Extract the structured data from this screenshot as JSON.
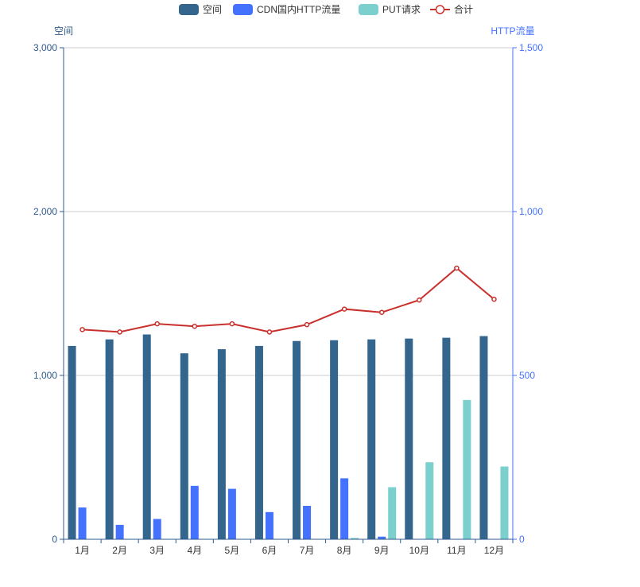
{
  "chart_data": {
    "type": "bar",
    "categories": [
      "1月",
      "2月",
      "3月",
      "4月",
      "5月",
      "6月",
      "7月",
      "8月",
      "9月",
      "10月",
      "11月",
      "12月"
    ],
    "legend": {
      "placement": "top-center",
      "items": [
        "空间",
        "CDN国内HTTP流量",
        "PUT请求",
        "合计"
      ]
    },
    "y_left": {
      "label": "空间",
      "ylim": [
        0,
        3000
      ],
      "ticks": [
        "0",
        "1,000",
        "2,000",
        "3,000"
      ],
      "tick_values": [
        0,
        1000,
        2000,
        3000
      ],
      "color": "#2f5a8c"
    },
    "y_right": {
      "label": "HTTP流量",
      "ylim": [
        0,
        1500
      ],
      "ticks": [
        "0",
        "500",
        "1,000",
        "1,500"
      ],
      "tick_values": [
        0,
        500,
        1000,
        1500
      ],
      "color": "#4472ff"
    },
    "grid": true,
    "series": [
      {
        "name": "空间",
        "type": "bar",
        "axis": "left",
        "color": "#34658c",
        "values": [
          1180,
          1220,
          1250,
          1135,
          1160,
          1180,
          1210,
          1215,
          1220,
          1225,
          1230,
          1240
        ]
      },
      {
        "name": "CDN国内HTTP流量",
        "type": "bar",
        "axis": "right",
        "color": "#4472ff",
        "values": [
          97,
          44,
          62,
          163,
          154,
          83,
          102,
          186,
          8,
          0,
          0,
          0
        ]
      },
      {
        "name": "PUT请求",
        "type": "bar",
        "axis": "right",
        "color": "#7bcfcc",
        "values": [
          1,
          1,
          1,
          1,
          1,
          1,
          1,
          4,
          159,
          235,
          425,
          222
        ]
      },
      {
        "name": "合计",
        "type": "line",
        "axis": "left",
        "color": "#c9302c",
        "values": [
          1280,
          1265,
          1315,
          1300,
          1315,
          1265,
          1310,
          1405,
          1385,
          1460,
          1655,
          1465
        ]
      }
    ]
  }
}
